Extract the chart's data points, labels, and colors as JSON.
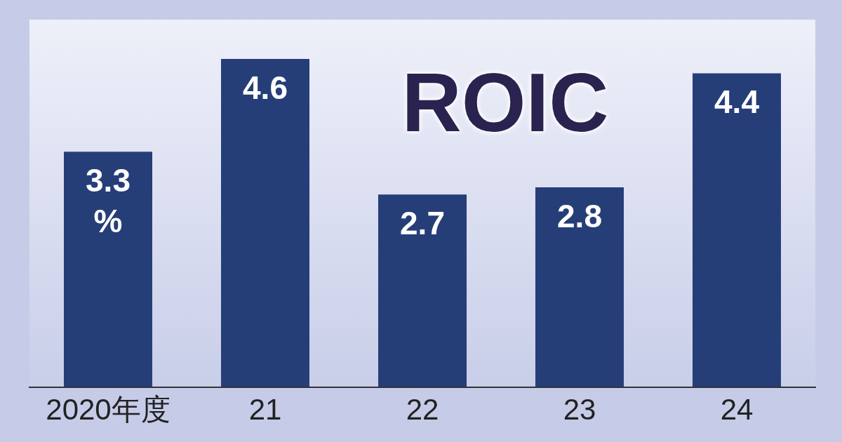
{
  "chart_data": {
    "type": "bar",
    "title": "ROIC",
    "categories": [
      "2020年度",
      "21",
      "22",
      "23",
      "24"
    ],
    "values": [
      3.3,
      4.6,
      2.7,
      2.8,
      4.4
    ],
    "value_labels": [
      "3.3\n%",
      "4.6",
      "2.7",
      "2.8",
      "4.4"
    ],
    "color": "#263e78",
    "grid": false,
    "legend": false
  }
}
